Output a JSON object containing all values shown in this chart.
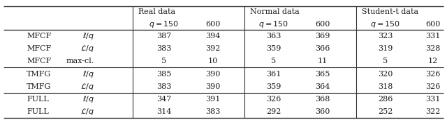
{
  "rows": [
    {
      "method": "MFCF",
      "variant": "ell",
      "vals": [
        387,
        394,
        363,
        369,
        323,
        331
      ],
      "group_start": true
    },
    {
      "method": "MFCF",
      "variant": "cal",
      "vals": [
        383,
        392,
        359,
        366,
        319,
        328
      ],
      "group_start": false
    },
    {
      "method": "MFCF",
      "variant": "max-cl.",
      "vals": [
        5,
        10,
        5,
        11,
        5,
        12
      ],
      "group_start": false
    },
    {
      "method": "TMFG",
      "variant": "ell",
      "vals": [
        385,
        390,
        361,
        365,
        320,
        326
      ],
      "group_start": true
    },
    {
      "method": "TMFG",
      "variant": "cal",
      "vals": [
        383,
        390,
        359,
        364,
        318,
        326
      ],
      "group_start": false
    },
    {
      "method": "FULL",
      "variant": "ell",
      "vals": [
        347,
        391,
        326,
        368,
        286,
        331
      ],
      "group_start": true
    },
    {
      "method": "FULL",
      "variant": "cal",
      "vals": [
        314,
        383,
        292,
        360,
        252,
        322
      ],
      "group_start": false
    }
  ],
  "group_headers": [
    "Real data",
    "Normal data",
    "Student-t data"
  ],
  "background": "#ffffff",
  "text_color": "#1a1a1a",
  "line_color": "#333333",
  "fs": 8.0
}
